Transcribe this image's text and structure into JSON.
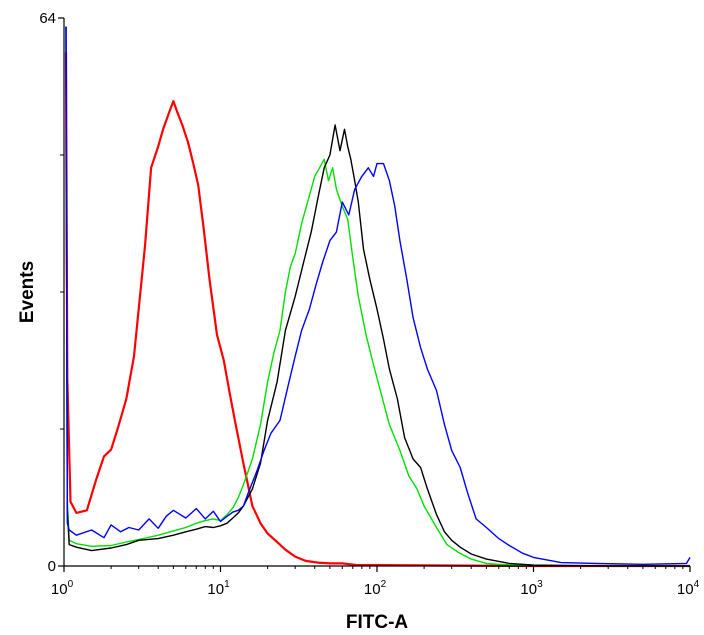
{
  "chart_data": {
    "type": "line",
    "title": "",
    "xlabel": "FITC-A",
    "ylabel": "Events",
    "x_scale": "log",
    "xlim": [
      1,
      10000
    ],
    "ylim": [
      0,
      64
    ],
    "x_ticks": [
      {
        "value": 1,
        "base": "10",
        "exp": "0"
      },
      {
        "value": 10,
        "base": "10",
        "exp": "1"
      },
      {
        "value": 100,
        "base": "10",
        "exp": "2"
      },
      {
        "value": 1000,
        "base": "10",
        "exp": "3"
      },
      {
        "value": 10000,
        "base": "10",
        "exp": "4"
      }
    ],
    "y_tick_labels": [
      {
        "value": 0,
        "label": "0"
      },
      {
        "value": 64,
        "label": "64"
      }
    ],
    "y_minor_ticks": [
      16,
      32,
      48
    ],
    "grid": false,
    "legend": "none",
    "series": [
      {
        "color": "#ff0000",
        "x": [
          1.03,
          1.05,
          1.1,
          1.2,
          1.4,
          1.6,
          1.8,
          2.0,
          2.2,
          2.5,
          2.8,
          3.0,
          3.3,
          3.6,
          4.0,
          4.3,
          4.7,
          5.0,
          5.3,
          5.7,
          6.2,
          6.7,
          7.2,
          7.8,
          8.5,
          9.5,
          10.5,
          11.5,
          12.5,
          14.0,
          16.0,
          18.0,
          20.0,
          23.0,
          26.0,
          30.0,
          35.0,
          42.0,
          50.0,
          60.0,
          75.0,
          100.0,
          1000.0,
          10000.0
        ],
        "y": [
          60,
          22,
          7.5,
          6.2,
          6.5,
          10.0,
          12.8,
          13.6,
          16.0,
          19.5,
          24.5,
          30.0,
          37.5,
          46.5,
          49.0,
          51.0,
          53.0,
          54.3,
          53.0,
          51.5,
          49.5,
          47.0,
          44.5,
          39.5,
          33.5,
          27.0,
          24.0,
          20.0,
          16.5,
          12.0,
          7.0,
          5.0,
          3.8,
          2.8,
          1.9,
          1.1,
          0.6,
          0.4,
          0.3,
          0.3,
          0.1,
          0.1,
          0.0,
          0.0
        ]
      },
      {
        "color": "#00e000",
        "x": [
          1.03,
          1.05,
          1.08,
          1.2,
          1.5,
          2.0,
          2.5,
          3.0,
          4.0,
          5.0,
          6.0,
          7.0,
          8.0,
          9.0,
          10.0,
          11.0,
          12.0,
          13.0,
          14.0,
          16.0,
          18.0,
          20.0,
          22.0,
          24.0,
          26.0,
          28.0,
          30.0,
          33.0,
          36.0,
          40.0,
          43.0,
          46.0,
          49.0,
          52.0,
          55.0,
          60.0,
          65.0,
          70.0,
          76.0,
          85.0,
          95.0,
          105.0,
          120.0,
          140.0,
          160.0,
          180.0,
          200.0,
          240.0,
          280.0,
          330.0,
          400.0,
          500.0,
          600.0,
          800.0,
          1000.0,
          3000.0,
          10000.0
        ],
        "y": [
          63,
          8,
          3.0,
          2.6,
          2.3,
          2.4,
          2.8,
          3.1,
          3.6,
          4.1,
          4.5,
          5.0,
          5.3,
          5.5,
          5.3,
          6.0,
          6.8,
          8.0,
          9.5,
          12.5,
          16.5,
          21.5,
          25.0,
          27.5,
          32.0,
          35.0,
          36.5,
          40.0,
          42.5,
          45.5,
          46.5,
          47.5,
          45.0,
          46.5,
          44.0,
          42.0,
          40.5,
          36.0,
          31.5,
          27.0,
          23.5,
          20.5,
          16.5,
          13.5,
          10.5,
          9.0,
          7.0,
          4.5,
          2.5,
          1.6,
          0.8,
          0.3,
          0.2,
          0.1,
          0.05,
          0.0,
          0.0
        ]
      },
      {
        "color": "#000000",
        "x": [
          1.03,
          1.05,
          1.08,
          1.2,
          1.5,
          2.0,
          2.5,
          3.0,
          4.0,
          5.0,
          6.0,
          7.0,
          8.0,
          9.0,
          10.0,
          11.0,
          12.0,
          13.0,
          14.0,
          16.0,
          18.0,
          20.0,
          23.0,
          26.0,
          30.0,
          34.0,
          38.0,
          42.0,
          46.0,
          50.0,
          54.0,
          58.0,
          62.0,
          65.0,
          68.0,
          72.0,
          76.0,
          82.0,
          90.0,
          100.0,
          110.0,
          120.0,
          135.0,
          150.0,
          170.0,
          190.0,
          210.0,
          240.0,
          270.0,
          300.0,
          340.0,
          400.0,
          500.0,
          700.0,
          1000.0,
          3000.0,
          10000.0
        ],
        "y": [
          63,
          6.5,
          2.5,
          2.2,
          1.8,
          2.1,
          2.5,
          3.0,
          3.2,
          3.6,
          4.0,
          4.3,
          4.6,
          4.5,
          4.7,
          5.0,
          5.6,
          6.2,
          7.0,
          9.0,
          12.0,
          17.0,
          21.5,
          27.5,
          31.5,
          35.5,
          39.0,
          43.0,
          46.5,
          48.0,
          51.5,
          48.5,
          51.0,
          49.0,
          47.5,
          45.0,
          42.5,
          37.0,
          33.5,
          30.0,
          26.5,
          23.0,
          19.5,
          15.0,
          12.5,
          11.5,
          9.0,
          6.0,
          4.0,
          3.0,
          2.2,
          1.4,
          0.8,
          0.3,
          0.1,
          0.0,
          0.0
        ]
      },
      {
        "color": "#0000ff",
        "x": [
          1.03,
          1.05,
          1.08,
          1.2,
          1.5,
          1.8,
          2.0,
          2.3,
          2.6,
          3.0,
          3.5,
          4.0,
          4.5,
          5.0,
          6.0,
          7.0,
          8.0,
          9.0,
          10.0,
          11.0,
          12.0,
          13.0,
          14.0,
          15.0,
          17.0,
          19.0,
          21.0,
          24.0,
          27.0,
          30.0,
          33.0,
          37.0,
          41.0,
          45.0,
          50.0,
          55.0,
          60.0,
          66.0,
          72.0,
          80.0,
          88.0,
          95.0,
          100.0,
          110.0,
          120.0,
          130.0,
          140.0,
          155.0,
          170.0,
          190.0,
          210.0,
          240.0,
          270.0,
          300.0,
          340.0,
          380.0,
          430.0,
          500.0,
          600.0,
          700.0,
          850.0,
          1000.0,
          1500.0,
          2500.0,
          5000.0,
          9500.0,
          10000.0
        ],
        "y": [
          63,
          5.0,
          4.2,
          3.6,
          4.2,
          3.3,
          4.8,
          4.0,
          4.5,
          4.2,
          5.5,
          4.4,
          5.8,
          6.5,
          5.6,
          6.7,
          5.5,
          6.4,
          5.2,
          5.8,
          6.3,
          6.5,
          7.0,
          8.5,
          11.0,
          13.5,
          15.5,
          17.0,
          21.0,
          24.5,
          27.5,
          30.0,
          33.0,
          35.5,
          38.0,
          39.0,
          42.5,
          41.0,
          44.0,
          45.5,
          46.5,
          45.5,
          47.0,
          47.0,
          45.0,
          42.0,
          38.0,
          33.5,
          29.0,
          25.5,
          23.0,
          20.5,
          16.5,
          13.5,
          11.5,
          8.5,
          5.5,
          4.5,
          3.2,
          2.4,
          1.5,
          1.0,
          0.4,
          0.3,
          0.2,
          0.3,
          1.0
        ]
      }
    ]
  }
}
